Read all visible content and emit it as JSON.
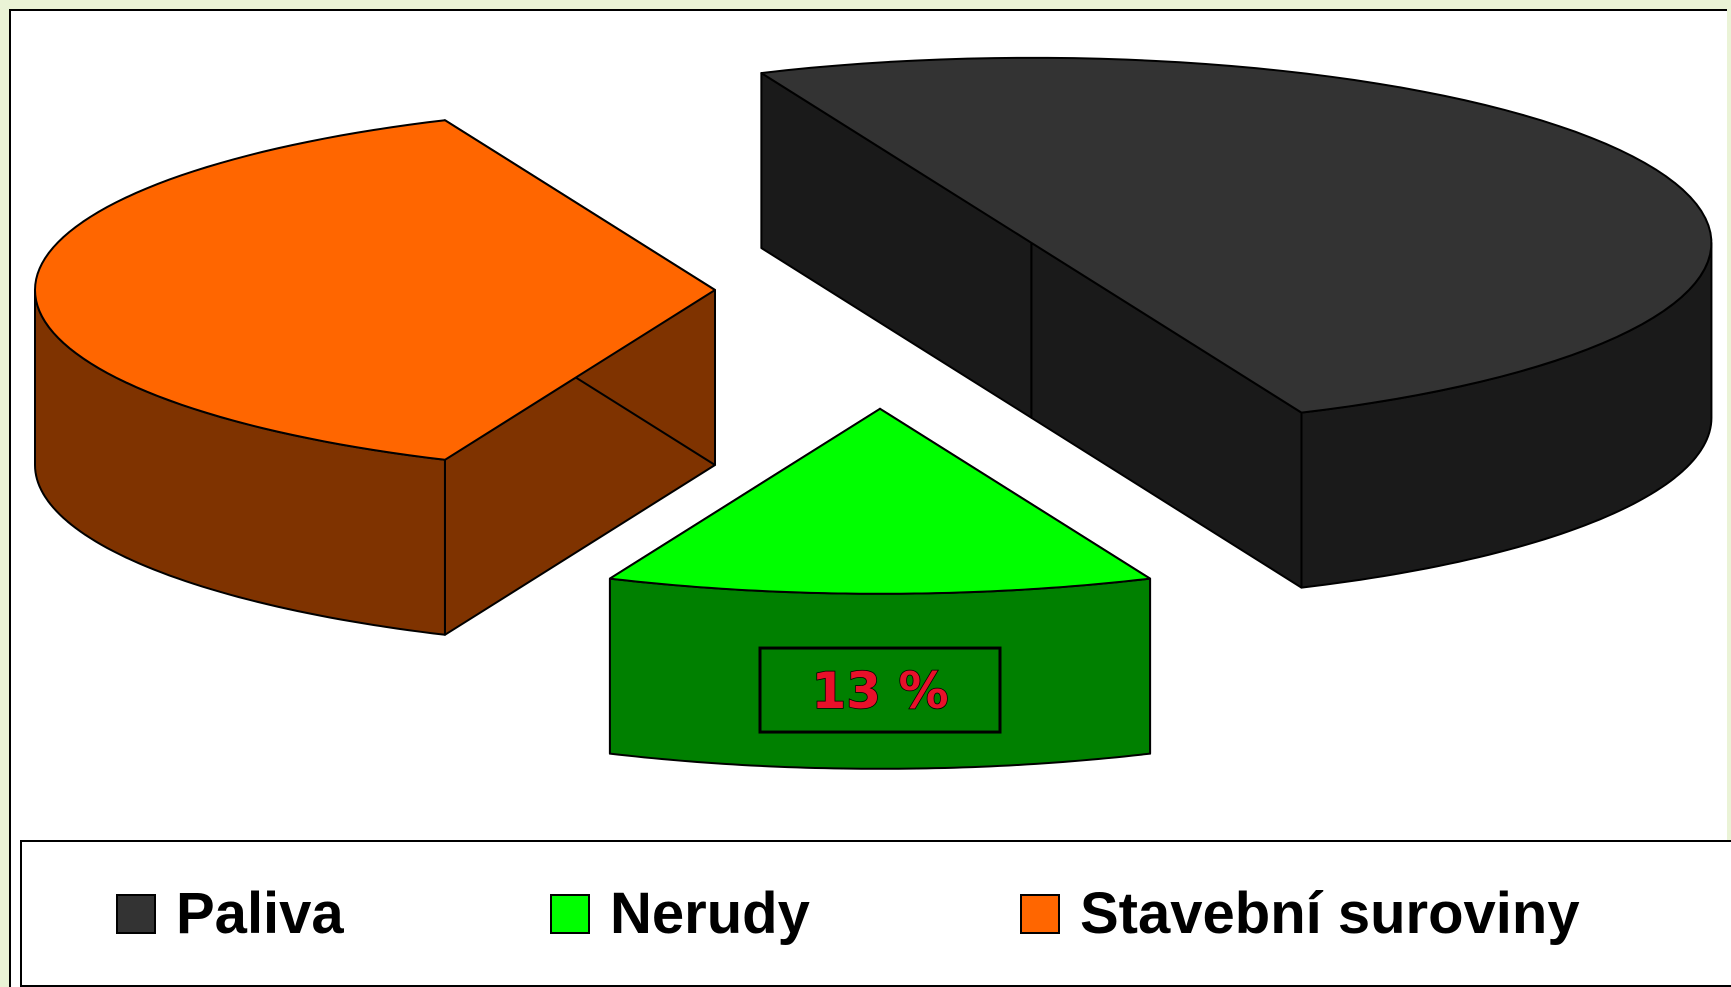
{
  "chart_data": {
    "type": "pie",
    "style": "3d-exploded",
    "categories": [
      "Paliva",
      "Nerudy",
      "Stavební suroviny"
    ],
    "values": [
      50,
      13,
      37
    ],
    "data_labels": [
      {
        "category": "Nerudy",
        "text": "13 %"
      }
    ],
    "colors": {
      "Paliva": {
        "top": "#333333",
        "side": "#1a1a1a"
      },
      "Nerudy": {
        "top": "#00ff00",
        "side": "#008000"
      },
      "Stavební suroviny": {
        "top": "#ff6600",
        "side": "#7f3300"
      }
    },
    "legend": {
      "position": "bottom",
      "items": [
        {
          "label": "Paliva",
          "color": "#333333"
        },
        {
          "label": "Nerudy",
          "color": "#00ff00"
        },
        {
          "label": "Stavební suroviny",
          "color": "#ff6600"
        }
      ]
    }
  }
}
